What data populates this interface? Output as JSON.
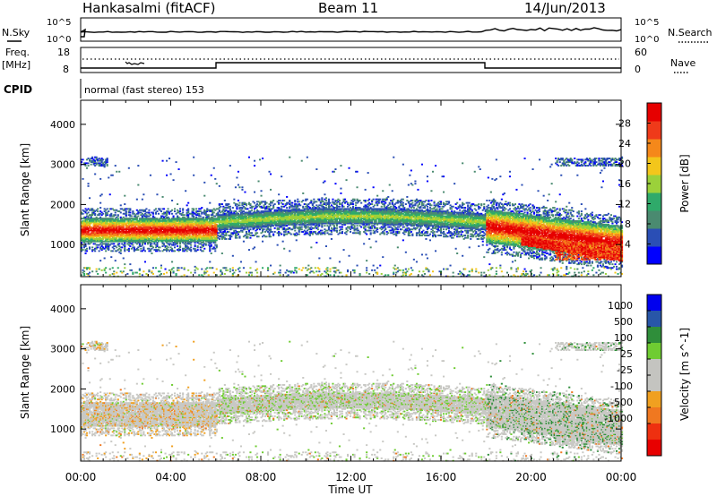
{
  "header": {
    "station": "Hankasalmi (fitACF)",
    "beam": "Beam 11",
    "date": "14/Jun/2013"
  },
  "sky_panel": {
    "left_label": "N.Sky",
    "left_ticks": [
      "10^5",
      "10^0"
    ],
    "right_label": "N.Search",
    "right_ticks": [
      "10^5",
      "10^0"
    ]
  },
  "freq_panel": {
    "left_label_1": "Freq.",
    "left_label_2": "[MHz]",
    "left_ticks": [
      "18",
      "8"
    ],
    "right_label": "Nave",
    "right_ticks": [
      "60",
      "0"
    ]
  },
  "cpid": {
    "label": "CPID",
    "value": "normal (fast stereo) 153"
  },
  "colors": {
    "power_scale": [
      "#0000ff",
      "#2a4eb5",
      "#4a8a70",
      "#2faa6a",
      "#9bd13a",
      "#f3c61b",
      "#f5881a",
      "#ef3a1a",
      "#e60000"
    ],
    "velocity_scale": [
      "#0000ee",
      "#2856a8",
      "#2f8e3a",
      "#6fcc32",
      "#c4c4c0",
      "#c4c4c0",
      "#f0a020",
      "#f07820",
      "#ee3010",
      "#e80000"
    ],
    "ground_scatter": "#c8c8c4"
  },
  "chart_data": [
    {
      "type": "heatmap",
      "title": "Power",
      "xlabel": "Time UT",
      "ylabel": "Slant Range [km]",
      "x_ticks": [
        "00:00",
        "04:00",
        "08:00",
        "12:00",
        "16:00",
        "20:00",
        "00:00"
      ],
      "y_ticks": [
        "1000",
        "2000",
        "3000",
        "4000"
      ],
      "ylim": [
        200,
        4600
      ],
      "colorbar_label": "Power [dB]",
      "colorbar_ticks": [
        "4",
        "8",
        "12",
        "16",
        "20",
        "24",
        "28"
      ],
      "bands": [
        {
          "t0": 0.0,
          "t1": 6.0,
          "r0": 1000,
          "r1": 1850,
          "peak": 27
        },
        {
          "t0": 6.0,
          "t1": 18.0,
          "r0": 1350,
          "r1": 1950,
          "peak": 14
        },
        {
          "t0": 18.0,
          "t1": 24.0,
          "r0": 700,
          "r1": 2100,
          "peak": 28
        }
      ]
    },
    {
      "type": "heatmap",
      "title": "Velocity",
      "xlabel": "Time UT",
      "ylabel": "Slant Range [km]",
      "x_ticks": [
        "00:00",
        "04:00",
        "08:00",
        "12:00",
        "16:00",
        "20:00",
        "00:00"
      ],
      "y_ticks": [
        "1000",
        "2000",
        "3000",
        "4000"
      ],
      "ylim": [
        200,
        4600
      ],
      "colorbar_label": "Velocity [m s^-1]",
      "colorbar_ticks": [
        "1000",
        "500",
        "100",
        "25",
        "-25",
        "-100",
        "-500",
        "-1000"
      ]
    }
  ],
  "time_label": "Time UT"
}
